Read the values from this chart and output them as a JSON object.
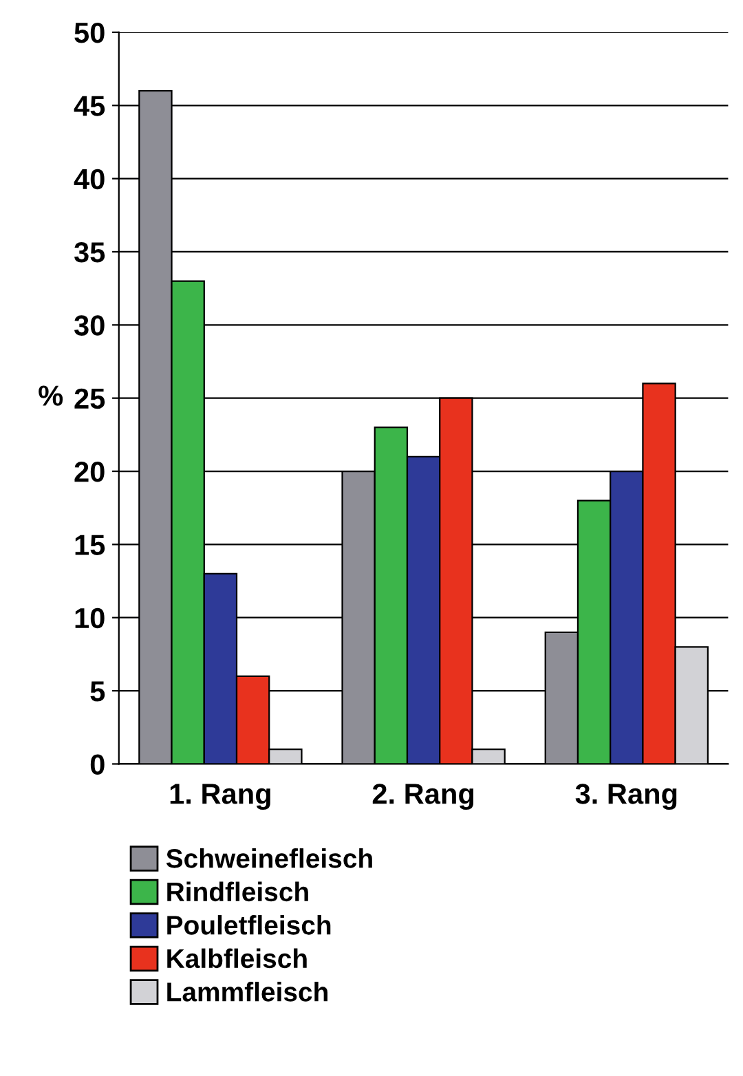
{
  "chart_data": {
    "type": "bar",
    "ylabel": "%",
    "categories": [
      "1. Rang",
      "2. Rang",
      "3. Rang"
    ],
    "series": [
      {
        "name": "Schweinefleisch",
        "color": "#8e8e96",
        "values": [
          46,
          20,
          9
        ]
      },
      {
        "name": "Rindfleisch",
        "color": "#3cb54a",
        "values": [
          33,
          23,
          18
        ]
      },
      {
        "name": "Pouletfleisch",
        "color": "#2e3a98",
        "values": [
          13,
          21,
          20
        ]
      },
      {
        "name": "Kalbfleisch",
        "color": "#e8321e",
        "values": [
          6,
          25,
          26
        ]
      },
      {
        "name": "Lammfleisch",
        "color": "#d2d2d6",
        "values": [
          1,
          1,
          8
        ]
      }
    ],
    "ylim": [
      0,
      50
    ],
    "yticks": [
      0,
      5,
      10,
      15,
      20,
      25,
      30,
      35,
      40,
      45,
      50
    ],
    "grid": "y",
    "legend": "bottom"
  }
}
